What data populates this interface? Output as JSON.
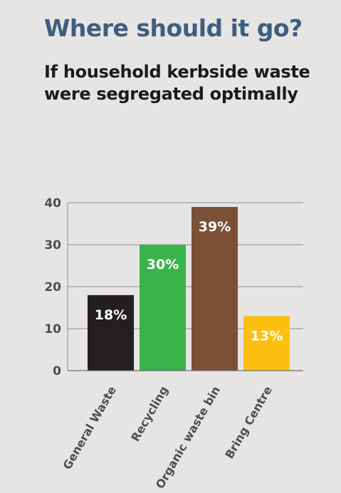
{
  "title": "Where should it go?",
  "subtitle": "If household kerbside waste were segregated optimally",
  "chart_data": {
    "type": "bar",
    "categories": [
      "General Waste",
      "Recycling",
      "Organic waste bin",
      "Bring Centre"
    ],
    "values": [
      18,
      30,
      39,
      13
    ],
    "data_labels": [
      "18%",
      "30%",
      "39%",
      "13%"
    ],
    "colors": [
      "#231f20",
      "#3ab34a",
      "#7a5037",
      "#fbbf10"
    ],
    "ylim": [
      0,
      40
    ],
    "yticks": [
      0,
      10,
      20,
      30,
      40
    ],
    "grid": true,
    "legend": "none"
  }
}
